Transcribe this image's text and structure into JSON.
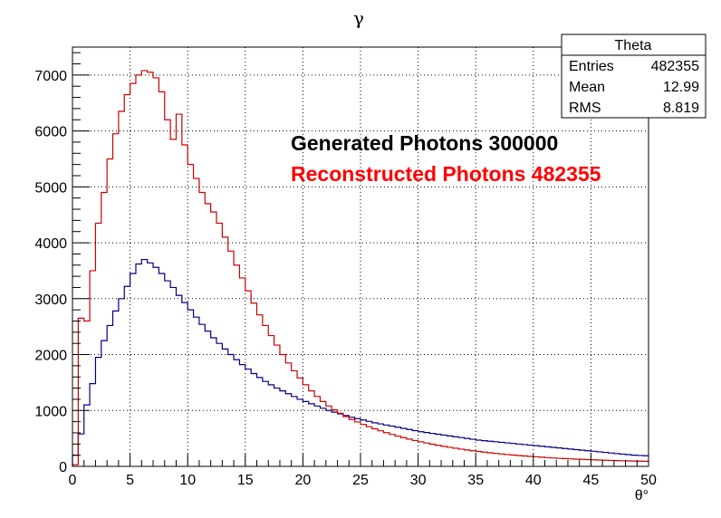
{
  "chart_data": {
    "type": "histogram",
    "title": "γ",
    "xlabel": "θ°",
    "ylabel": "",
    "xlim": [
      0,
      50
    ],
    "ylim": [
      0,
      7500
    ],
    "x_ticks": [
      0,
      5,
      10,
      15,
      20,
      25,
      30,
      35,
      40,
      45,
      50
    ],
    "y_ticks": [
      0,
      1000,
      2000,
      3000,
      4000,
      5000,
      6000,
      7000
    ],
    "grid": true,
    "bin_width": 0.5,
    "series": [
      {
        "name": "",
        "color": "#000080",
        "values": [
          200,
          580,
          1100,
          1480,
          1950,
          2250,
          2520,
          2780,
          3000,
          3220,
          3450,
          3620,
          3700,
          3640,
          3560,
          3450,
          3320,
          3200,
          3060,
          2930,
          2800,
          2670,
          2540,
          2420,
          2300,
          2200,
          2100,
          2000,
          1910,
          1820,
          1740,
          1660,
          1590,
          1520,
          1460,
          1400,
          1350,
          1300,
          1250,
          1200,
          1160,
          1120,
          1080,
          1040,
          1000,
          970,
          940,
          910,
          880,
          855,
          830,
          805,
          780,
          760,
          740,
          720,
          700,
          680,
          660,
          640,
          620,
          605,
          590,
          575,
          560,
          545,
          530,
          515,
          500,
          485,
          470,
          460,
          450,
          440,
          430,
          420,
          410,
          400,
          390,
          380,
          370,
          360,
          350,
          340,
          330,
          320,
          310,
          300,
          290,
          280,
          270,
          260,
          250,
          240,
          230,
          220,
          210,
          200,
          195,
          190
        ]
      },
      {
        "name": "",
        "color": "#cc0000",
        "values": [
          30,
          2650,
          2600,
          3500,
          4350,
          4900,
          5500,
          5950,
          6350,
          6650,
          6850,
          7000,
          7080,
          7050,
          6950,
          6700,
          6200,
          5850,
          6300,
          5750,
          5400,
          5150,
          4900,
          4700,
          4550,
          4350,
          4100,
          3850,
          3600,
          3370,
          3140,
          2920,
          2710,
          2520,
          2340,
          2170,
          2000,
          1850,
          1710,
          1580,
          1460,
          1350,
          1250,
          1160,
          1080,
          1010,
          950,
          890,
          840,
          795,
          750,
          710,
          672,
          637,
          603,
          572,
          542,
          514,
          488,
          463,
          440,
          418,
          397,
          377,
          359,
          341,
          325,
          309,
          294,
          280,
          267,
          255,
          243,
          232,
          222,
          212,
          203,
          194,
          186,
          178,
          171,
          164,
          157,
          151,
          145,
          140,
          135,
          130,
          125,
          121,
          117,
          113,
          109,
          106,
          103,
          100,
          97,
          95,
          93,
          91
        ]
      }
    ],
    "stats_box": {
      "title": "Theta",
      "rows": [
        {
          "label": "Entries",
          "value": "482355"
        },
        {
          "label": "Mean",
          "value": "12.99"
        },
        {
          "label": "RMS",
          "value": "8.819"
        }
      ]
    },
    "annotations": [
      {
        "text": "Generated Photons 300000",
        "color": "#000000"
      },
      {
        "text": "Reconstructed Photons 482355",
        "color": "#ff0000"
      }
    ]
  }
}
